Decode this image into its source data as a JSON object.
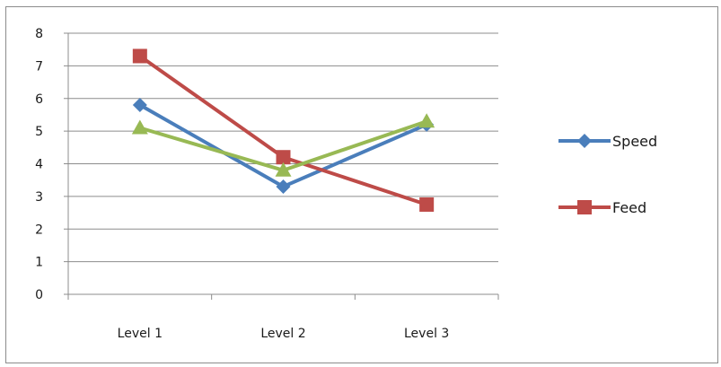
{
  "chart_data": {
    "type": "line",
    "categories": [
      "Level 1",
      "Level 2",
      "Level 3"
    ],
    "ylim": [
      0,
      8
    ],
    "yticks": [
      0,
      1,
      2,
      3,
      4,
      5,
      6,
      7,
      8
    ],
    "grid": true,
    "legend_position": "right",
    "series": [
      {
        "name": "Speed",
        "values": [
          5.8,
          3.3,
          5.2
        ],
        "color": "#4a7ebb",
        "marker": "diamond"
      },
      {
        "name": "Feed",
        "values": [
          7.3,
          4.2,
          2.75
        ],
        "color": "#be4b48",
        "marker": "square"
      },
      {
        "name": "",
        "values": [
          5.1,
          3.8,
          5.3
        ],
        "color": "#98b954",
        "marker": "triangle"
      }
    ]
  }
}
